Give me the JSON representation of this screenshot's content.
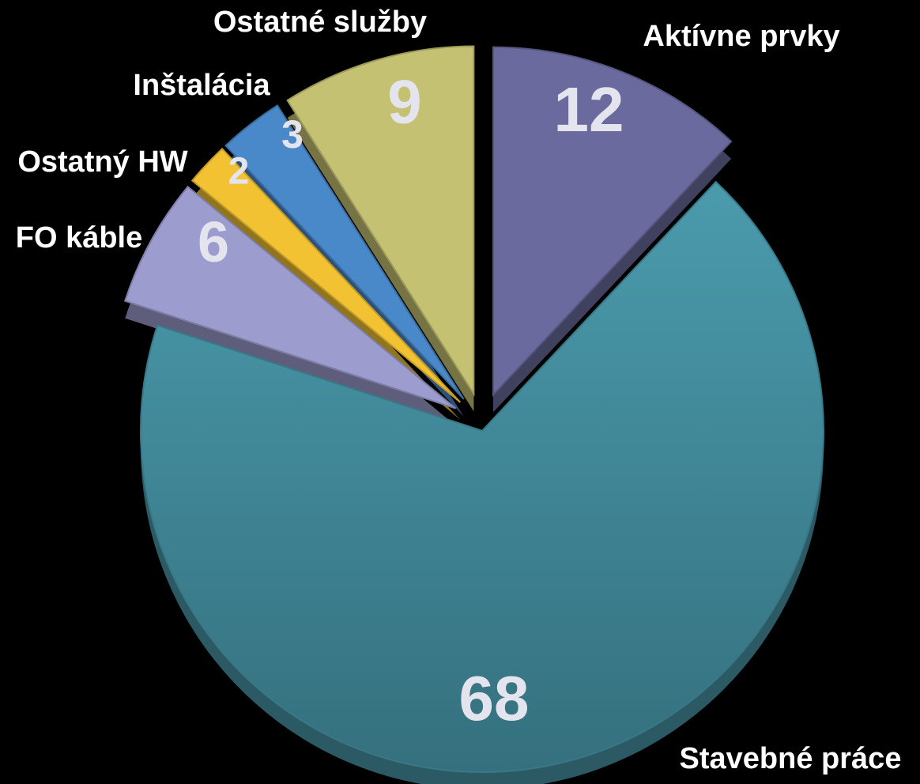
{
  "chart_data": {
    "type": "pie",
    "categories": [
      "Aktívne prvky",
      "Stavebné práce",
      "FO káble",
      "Ostatný HW",
      "Inštalácia",
      "Ostatné služby"
    ],
    "values": [
      12,
      68,
      6,
      2,
      3,
      9
    ],
    "colors": [
      "#6a6a9e",
      "#4796a7",
      "#9c9ccf",
      "#f2c232",
      "#4a89c9",
      "#c5c172"
    ]
  }
}
